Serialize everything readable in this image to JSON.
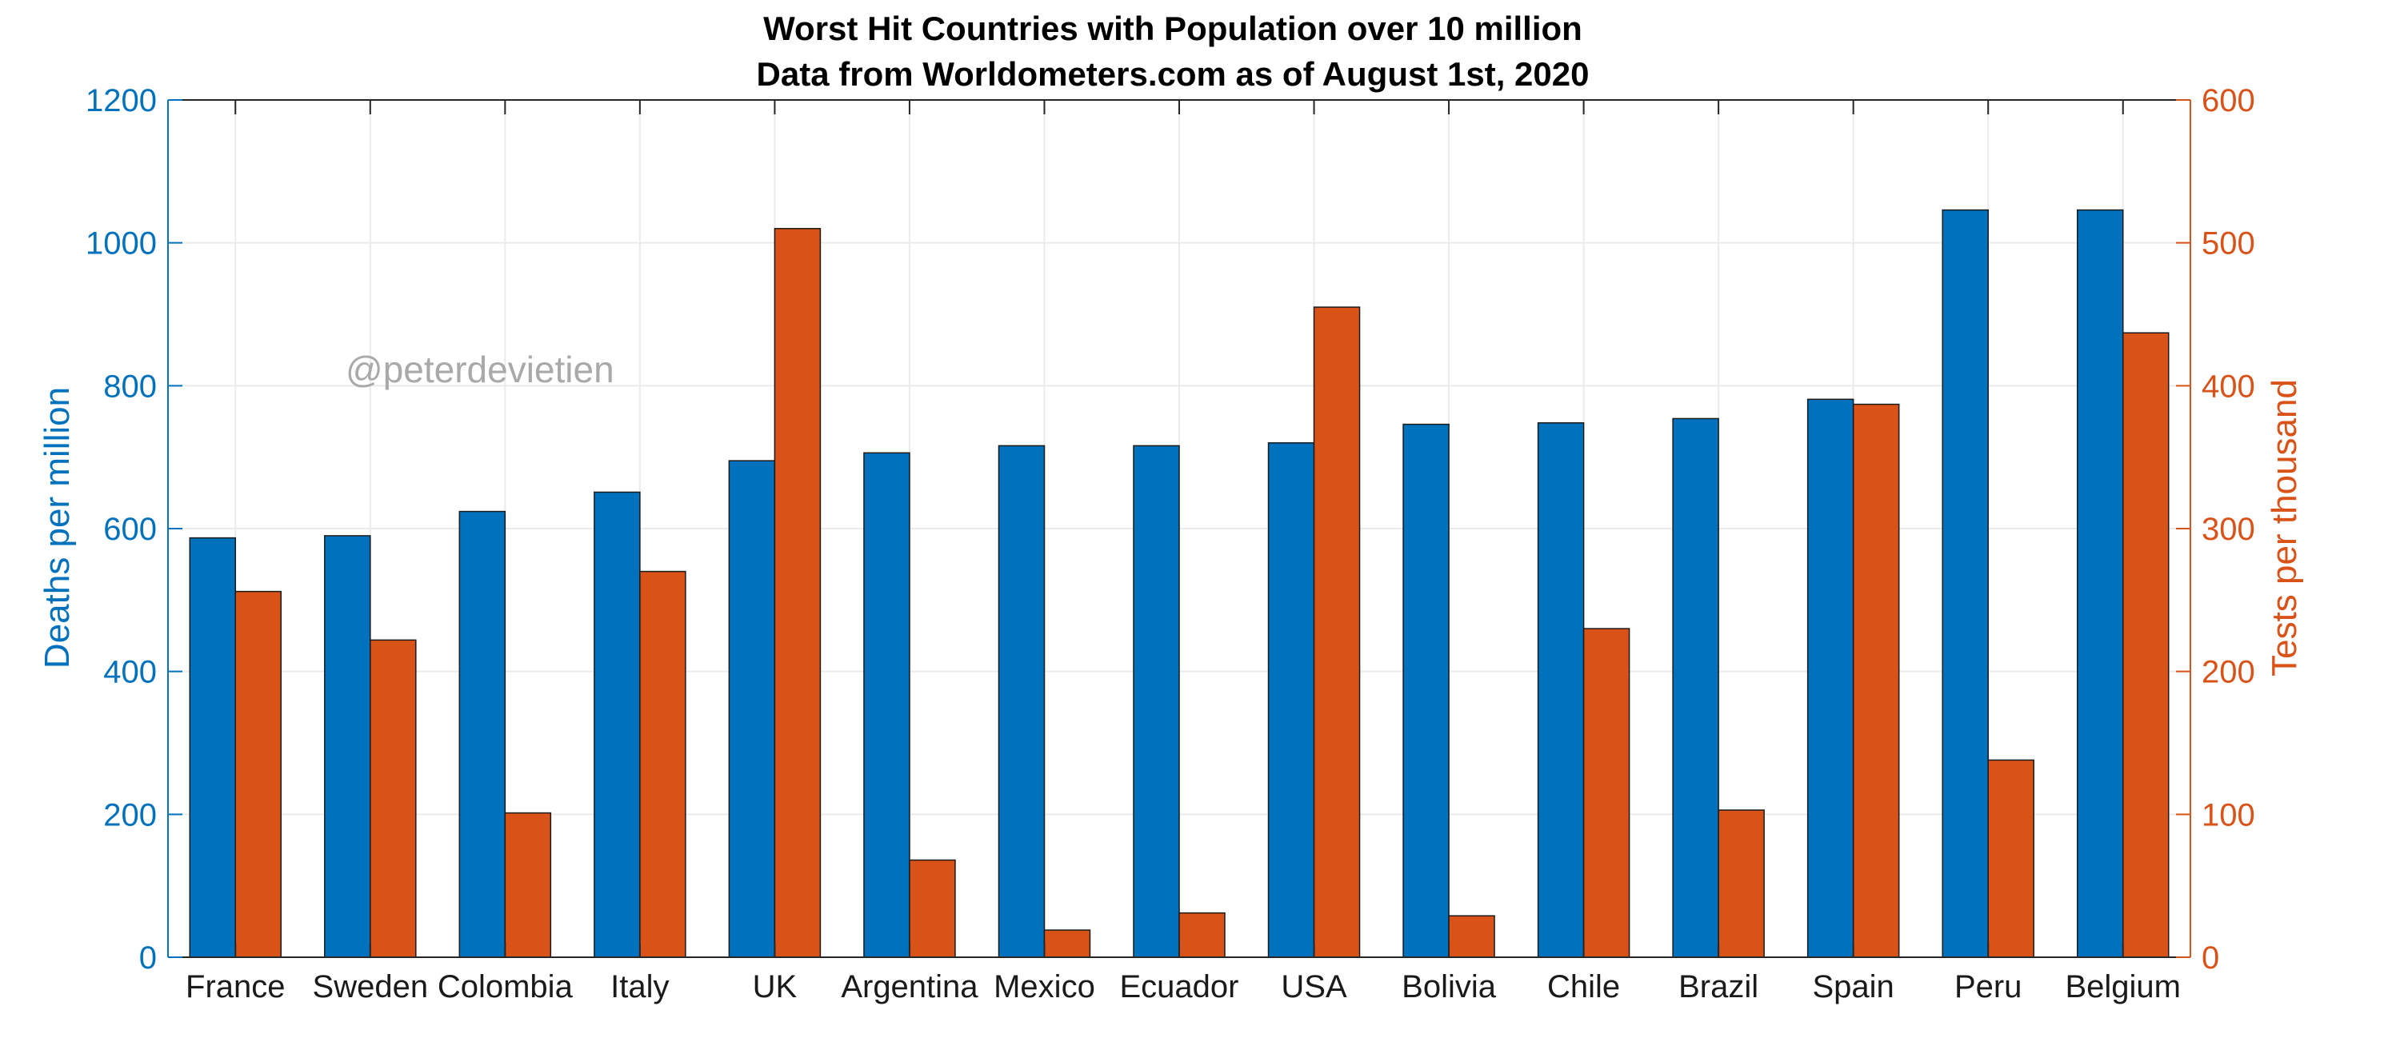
{
  "chart_data": {
    "type": "bar",
    "title": "Worst Hit Countries with Population over 10 million",
    "subtitle": "Data from Worldometers.com as of August 1st, 2020",
    "watermark": "@peterdevietien",
    "categories": [
      "France",
      "Sweden",
      "Colombia",
      "Italy",
      "UK",
      "Argentina",
      "Mexico",
      "Ecuador",
      "USA",
      "Bolivia",
      "Chile",
      "Brazil",
      "Spain",
      "Peru",
      "Belgium"
    ],
    "series": [
      {
        "name": "Deaths per million",
        "axis": "left",
        "color": "#0072BD",
        "values": [
          587,
          590,
          624,
          651,
          695,
          706,
          716,
          716,
          720,
          746,
          748,
          754,
          781,
          1046,
          1046
        ]
      },
      {
        "name": "Tests per thousand",
        "axis": "right",
        "color": "#D95319",
        "values": [
          256,
          222,
          101,
          270,
          510,
          68,
          19,
          31,
          455,
          29,
          230,
          103,
          387,
          138,
          437
        ]
      }
    ],
    "ylabel_left": "Deaths per million",
    "ylabel_right": "Tests per thousand",
    "ylim_left": [
      0,
      1200
    ],
    "ylim_right": [
      0,
      600
    ],
    "yticks_left": [
      "0",
      "200",
      "400",
      "600",
      "800",
      "1000",
      "1200"
    ],
    "yticks_right": [
      "0",
      "100",
      "200",
      "300",
      "400",
      "500",
      "600"
    ],
    "grid": true,
    "legend": "none"
  }
}
